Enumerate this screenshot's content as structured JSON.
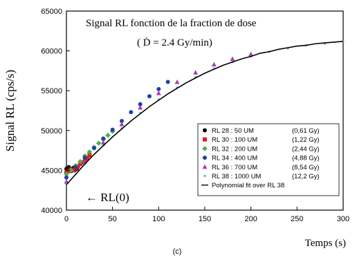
{
  "chart_data": {
    "type": "scatter",
    "title": "Signal RL fonction de la fraction de dose",
    "subtitle": "( Ḋ = 2.4 Gy/min)",
    "xlabel": "Temps (s)",
    "ylabel": "Signal RL (cps/s)",
    "caption": "(c)",
    "annotation": "← RL(0)",
    "xlim": [
      0,
      300
    ],
    "ylim": [
      40000,
      65000
    ],
    "x_ticks": [
      "0",
      "50",
      "100",
      "150",
      "200",
      "250",
      "300"
    ],
    "y_ticks": [
      "40000",
      "45000",
      "50000",
      "55000",
      "60000",
      "65000"
    ],
    "legend_position": "bottom-right",
    "series": [
      {
        "name": "RL 28 : 50 UM",
        "dose": "(0,61 Gy)",
        "color": "#000000",
        "marker": "circle",
        "x": [
          0,
          1.2,
          2.5,
          3.8,
          5,
          6.2,
          7.5,
          8.8,
          10,
          11.2,
          12.5
        ],
        "y": [
          45200,
          45000,
          45400,
          45100,
          44900,
          45200,
          45300,
          45000,
          45400,
          45200,
          45500
        ]
      },
      {
        "name": "RL 30 : 100 UM",
        "dose": "(1,22 Gy)",
        "color": "#e41a1c",
        "marker": "square",
        "x": [
          0,
          2.5,
          5,
          7.5,
          10,
          12.5,
          15,
          17.5,
          20,
          22.5,
          25
        ],
        "y": [
          44700,
          44900,
          45100,
          45000,
          45300,
          45500,
          45800,
          46000,
          46300,
          46500,
          46900
        ]
      },
      {
        "name": "RL 32 : 200 UM",
        "dose": "(2,44 Gy)",
        "color": "#4daf4a",
        "marker": "diamond",
        "x": [
          0,
          5,
          10,
          15,
          20,
          25,
          30,
          35,
          40,
          45,
          50
        ],
        "y": [
          44500,
          45000,
          45600,
          46100,
          46800,
          47300,
          47900,
          48400,
          48900,
          49400,
          49900
        ]
      },
      {
        "name": "RL 34 : 400 UM",
        "dose": "(4,88 Gy)",
        "color": "#1f3fae",
        "marker": "circle",
        "x": [
          0,
          10,
          20,
          30,
          40,
          50,
          60,
          70,
          80,
          90,
          100,
          110
        ],
        "y": [
          44100,
          45400,
          46600,
          47800,
          49000,
          50100,
          51200,
          52300,
          53300,
          54300,
          55200,
          56100
        ]
      },
      {
        "name": "RL 36 : 700 UM",
        "dose": "(8,54 Gy)",
        "color": "#b03aa8",
        "marker": "triangle",
        "x": [
          0,
          20,
          40,
          60,
          80,
          100,
          120,
          140,
          160,
          180,
          200
        ],
        "y": [
          43600,
          46100,
          48500,
          50800,
          52900,
          54700,
          56100,
          57300,
          58300,
          59000,
          59600
        ]
      },
      {
        "name": "RL 38 : 1000 UM",
        "dose": "(12,2 Gy)",
        "color": "#3cc0dc",
        "marker": "dot",
        "x": [
          0,
          20,
          40,
          60,
          80,
          100,
          120,
          140,
          160,
          180,
          200,
          220,
          240,
          260,
          280,
          300
        ],
        "y": [
          43300,
          45800,
          48100,
          50300,
          52200,
          53900,
          55400,
          56700,
          57800,
          58600,
          59300,
          59900,
          60300,
          60700,
          60900,
          61200
        ]
      }
    ],
    "fit": {
      "name": "Polynomial fit over RL 38",
      "color": "#000000",
      "x": [
        0,
        10,
        20,
        30,
        40,
        50,
        60,
        70,
        80,
        90,
        100,
        110,
        120,
        130,
        140,
        150,
        160,
        170,
        180,
        190,
        200,
        210,
        220,
        230,
        240,
        250,
        260,
        270,
        280,
        290,
        300
      ],
      "y": [
        43200,
        44500,
        45800,
        47000,
        48100,
        49200,
        50200,
        51200,
        52100,
        53000,
        53800,
        54600,
        55300,
        56000,
        56600,
        57200,
        57700,
        58200,
        58600,
        59000,
        59300,
        59700,
        59900,
        60200,
        60400,
        60600,
        60700,
        60900,
        61000,
        61100,
        61200
      ]
    }
  }
}
